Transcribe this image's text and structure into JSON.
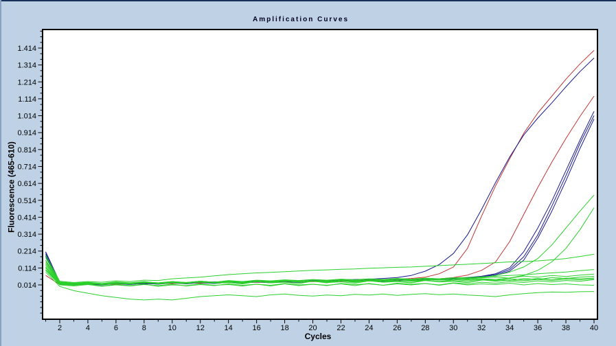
{
  "window": {
    "background_color": "#bfd2e5",
    "top_edge_color": "#17335c",
    "left_edge_color": "#8aa2c2"
  },
  "chart_data": {
    "type": "line",
    "title": "Amplification Curves",
    "xlabel": "Cycles",
    "ylabel": "Fluorescence (465-610)",
    "x_ticks": [
      2,
      4,
      6,
      8,
      10,
      12,
      14,
      16,
      18,
      20,
      22,
      24,
      26,
      28,
      30,
      32,
      34,
      36,
      38,
      40
    ],
    "y_ticks": [
      1.414,
      1.314,
      1.214,
      1.114,
      1.014,
      0.914,
      0.814,
      0.714,
      0.614,
      0.514,
      0.414,
      0.314,
      0.214,
      0.114,
      0.014
    ],
    "xlim": [
      1,
      40
    ],
    "ylim": [
      -0.189,
      1.523
    ],
    "grid": false,
    "legend": "none",
    "plot_background": "#ffffff",
    "frame_color": "#000000",
    "colors": {
      "red": "#c23434",
      "blue": "#17178f",
      "green": "#2bd02b"
    },
    "series": [
      {
        "name": "red-1",
        "color": "red",
        "values": [
          0.16,
          0.022,
          0.018,
          0.016,
          0.02,
          0.018,
          0.022,
          0.02,
          0.024,
          0.022,
          0.026,
          0.024,
          0.028,
          0.03,
          0.028,
          0.032,
          0.03,
          0.034,
          0.036,
          0.034,
          0.038,
          0.04,
          0.042,
          0.044,
          0.046,
          0.048,
          0.052,
          0.06,
          0.08,
          0.12,
          0.23,
          0.42,
          0.6,
          0.76,
          0.91,
          1.03,
          1.13,
          1.23,
          1.32,
          1.4
        ]
      },
      {
        "name": "red-2",
        "color": "red",
        "values": [
          0.07,
          0.016,
          0.014,
          0.018,
          0.016,
          0.02,
          0.018,
          0.022,
          0.02,
          0.024,
          0.022,
          0.026,
          0.024,
          0.028,
          0.026,
          0.03,
          0.028,
          0.032,
          0.03,
          0.034,
          0.032,
          0.036,
          0.034,
          0.038,
          0.036,
          0.04,
          0.042,
          0.046,
          0.05,
          0.058,
          0.072,
          0.1,
          0.15,
          0.27,
          0.43,
          0.59,
          0.74,
          0.88,
          1.01,
          1.13
        ]
      },
      {
        "name": "blue-1",
        "color": "blue",
        "values": [
          0.21,
          0.03,
          0.022,
          0.02,
          0.018,
          0.022,
          0.024,
          0.02,
          0.022,
          0.026,
          0.028,
          0.03,
          0.032,
          0.03,
          0.034,
          0.036,
          0.034,
          0.038,
          0.04,
          0.042,
          0.04,
          0.044,
          0.046,
          0.048,
          0.052,
          0.058,
          0.07,
          0.095,
          0.135,
          0.2,
          0.31,
          0.46,
          0.62,
          0.77,
          0.9,
          1.0,
          1.09,
          1.185,
          1.275,
          1.355
        ]
      },
      {
        "name": "blue-2",
        "color": "blue",
        "values": [
          0.205,
          0.028,
          0.02,
          0.024,
          0.018,
          0.026,
          0.02,
          0.028,
          0.022,
          0.03,
          0.024,
          0.032,
          0.026,
          0.034,
          0.028,
          0.036,
          0.03,
          0.038,
          0.032,
          0.04,
          0.034,
          0.042,
          0.036,
          0.044,
          0.038,
          0.046,
          0.042,
          0.048,
          0.05,
          0.054,
          0.058,
          0.065,
          0.08,
          0.115,
          0.21,
          0.35,
          0.51,
          0.69,
          0.87,
          1.04
        ]
      },
      {
        "name": "blue-3",
        "color": "blue",
        "values": [
          0.195,
          0.024,
          0.018,
          0.022,
          0.016,
          0.024,
          0.018,
          0.026,
          0.02,
          0.028,
          0.022,
          0.03,
          0.024,
          0.032,
          0.026,
          0.034,
          0.028,
          0.036,
          0.03,
          0.038,
          0.032,
          0.04,
          0.034,
          0.042,
          0.036,
          0.044,
          0.04,
          0.046,
          0.048,
          0.052,
          0.056,
          0.062,
          0.075,
          0.105,
          0.18,
          0.31,
          0.48,
          0.66,
          0.85,
          1.015
        ]
      },
      {
        "name": "blue-4",
        "color": "blue",
        "values": [
          0.185,
          0.022,
          0.016,
          0.02,
          0.014,
          0.022,
          0.016,
          0.024,
          0.018,
          0.026,
          0.02,
          0.028,
          0.022,
          0.03,
          0.024,
          0.032,
          0.026,
          0.034,
          0.028,
          0.036,
          0.03,
          0.038,
          0.032,
          0.04,
          0.034,
          0.042,
          0.038,
          0.044,
          0.046,
          0.05,
          0.054,
          0.06,
          0.07,
          0.095,
          0.16,
          0.29,
          0.45,
          0.63,
          0.82,
          0.995
        ]
      },
      {
        "name": "green-1",
        "color": "green",
        "values": [
          0.15,
          0.028,
          0.02,
          0.025,
          0.018,
          0.026,
          0.022,
          0.03,
          0.024,
          0.032,
          0.028,
          0.036,
          0.03,
          0.04,
          0.034,
          0.042,
          0.038,
          0.044,
          0.04,
          0.046,
          0.042,
          0.048,
          0.044,
          0.05,
          0.046,
          0.052,
          0.048,
          0.054,
          0.05,
          0.056,
          0.052,
          0.058,
          0.07,
          0.09,
          0.12,
          0.17,
          0.25,
          0.35,
          0.45,
          0.545
        ]
      },
      {
        "name": "green-2",
        "color": "green",
        "values": [
          0.12,
          0.022,
          0.018,
          0.024,
          0.016,
          0.022,
          0.02,
          0.026,
          0.022,
          0.028,
          0.024,
          0.03,
          0.026,
          0.032,
          0.028,
          0.034,
          0.03,
          0.036,
          0.032,
          0.038,
          0.034,
          0.04,
          0.036,
          0.042,
          0.038,
          0.044,
          0.04,
          0.046,
          0.042,
          0.048,
          0.044,
          0.05,
          0.046,
          0.055,
          0.07,
          0.1,
          0.15,
          0.23,
          0.34,
          0.47
        ]
      },
      {
        "name": "green-3",
        "color": "green",
        "values": [
          0.19,
          0.035,
          0.028,
          0.034,
          0.03,
          0.038,
          0.034,
          0.042,
          0.04,
          0.05,
          0.055,
          0.06,
          0.068,
          0.075,
          0.08,
          0.085,
          0.088,
          0.092,
          0.096,
          0.1,
          0.103,
          0.106,
          0.108,
          0.112,
          0.115,
          0.118,
          0.12,
          0.124,
          0.128,
          0.132,
          0.136,
          0.14,
          0.145,
          0.15,
          0.152,
          0.156,
          0.162,
          0.17,
          0.182,
          0.195
        ]
      },
      {
        "name": "green-4",
        "color": "green",
        "values": [
          0.105,
          0.02,
          0.016,
          0.022,
          0.018,
          0.024,
          0.02,
          0.026,
          0.022,
          0.028,
          0.024,
          0.03,
          0.026,
          0.032,
          0.028,
          0.034,
          0.03,
          0.036,
          0.032,
          0.038,
          0.034,
          0.04,
          0.036,
          0.042,
          0.038,
          0.044,
          0.04,
          0.046,
          0.05,
          0.055,
          0.058,
          0.062,
          0.066,
          0.07,
          0.074,
          0.08,
          0.085,
          0.09,
          0.098,
          0.105
        ]
      },
      {
        "name": "green-5",
        "color": "green",
        "values": [
          0.13,
          0.024,
          0.018,
          0.026,
          0.016,
          0.028,
          0.018,
          0.03,
          0.02,
          0.026,
          0.022,
          0.032,
          0.024,
          0.028,
          0.02,
          0.034,
          0.026,
          0.03,
          0.022,
          0.036,
          0.028,
          0.032,
          0.024,
          0.038,
          0.03,
          0.034,
          0.026,
          0.04,
          0.032,
          0.036,
          0.028,
          0.042,
          0.046,
          0.04,
          0.052,
          0.046,
          0.058,
          0.052,
          0.06,
          0.065
        ]
      },
      {
        "name": "green-6",
        "color": "green",
        "values": [
          0.115,
          0.018,
          0.012,
          0.02,
          0.008,
          0.016,
          0.01,
          0.018,
          0.006,
          0.014,
          0.01,
          0.02,
          0.012,
          0.016,
          0.008,
          0.018,
          0.012,
          0.022,
          0.014,
          0.018,
          0.01,
          0.022,
          0.016,
          0.02,
          0.012,
          0.024,
          0.018,
          0.022,
          0.014,
          0.026,
          0.02,
          0.03,
          0.024,
          0.034,
          0.028,
          0.038,
          0.032,
          0.04,
          0.036,
          0.045
        ]
      },
      {
        "name": "green-7",
        "color": "green",
        "values": [
          0.175,
          0.03,
          0.022,
          0.028,
          0.02,
          0.03,
          0.024,
          0.032,
          0.026,
          0.034,
          0.028,
          0.036,
          0.03,
          0.038,
          0.026,
          0.034,
          0.03,
          0.04,
          0.032,
          0.038,
          0.03,
          0.042,
          0.034,
          0.04,
          0.032,
          0.044,
          0.036,
          0.042,
          0.034,
          0.046,
          0.038,
          0.048,
          0.04,
          0.05,
          0.044,
          0.052,
          0.046,
          0.054,
          0.05,
          0.055
        ]
      },
      {
        "name": "green-8",
        "color": "green",
        "values": [
          0.09,
          0.005,
          -0.02,
          -0.035,
          -0.05,
          -0.06,
          -0.07,
          -0.075,
          -0.07,
          -0.075,
          -0.065,
          -0.055,
          -0.05,
          -0.045,
          -0.05,
          -0.055,
          -0.045,
          -0.04,
          -0.048,
          -0.052,
          -0.046,
          -0.05,
          -0.042,
          -0.046,
          -0.04,
          -0.048,
          -0.042,
          -0.038,
          -0.044,
          -0.04,
          -0.046,
          -0.05,
          -0.055,
          -0.045,
          -0.038,
          -0.032,
          -0.028,
          -0.03,
          -0.026,
          -0.025
        ]
      },
      {
        "name": "green-9",
        "color": "green",
        "values": [
          0.14,
          0.026,
          0.02,
          0.028,
          0.022,
          0.03,
          0.024,
          0.032,
          0.026,
          0.034,
          0.028,
          0.036,
          0.03,
          0.038,
          0.032,
          0.04,
          0.034,
          0.042,
          0.036,
          0.044,
          0.038,
          0.046,
          0.04,
          0.048,
          0.042,
          0.05,
          0.044,
          0.052,
          0.046,
          0.054,
          0.048,
          0.056,
          0.06,
          0.054,
          0.066,
          0.06,
          0.07,
          0.064,
          0.072,
          0.078
        ]
      },
      {
        "name": "green-10",
        "color": "green",
        "values": [
          0.1,
          0.014,
          0.008,
          0.016,
          0.006,
          0.014,
          0.008,
          0.016,
          0.01,
          0.018,
          0.008,
          0.016,
          0.01,
          0.02,
          0.012,
          0.018,
          0.008,
          0.02,
          0.01,
          0.018,
          0.012,
          0.02,
          0.01,
          0.022,
          0.012,
          0.02,
          0.014,
          0.022,
          0.012,
          0.024,
          0.014,
          0.02,
          0.016,
          0.024,
          0.014,
          0.022,
          0.016,
          0.02,
          0.014,
          0.012
        ]
      },
      {
        "name": "green-11",
        "color": "green",
        "values": [
          0.16,
          0.032,
          0.024,
          0.03,
          0.022,
          0.032,
          0.026,
          0.034,
          0.024,
          0.03,
          0.026,
          0.036,
          0.028,
          0.034,
          0.024,
          0.036,
          0.028,
          0.038,
          0.03,
          0.036,
          0.026,
          0.038,
          0.03,
          0.04,
          0.032,
          0.038,
          0.028,
          0.042,
          0.034,
          0.04,
          0.03,
          0.044,
          0.036,
          0.042,
          0.038,
          0.046,
          0.04,
          0.048,
          0.044,
          0.05
        ]
      }
    ]
  }
}
